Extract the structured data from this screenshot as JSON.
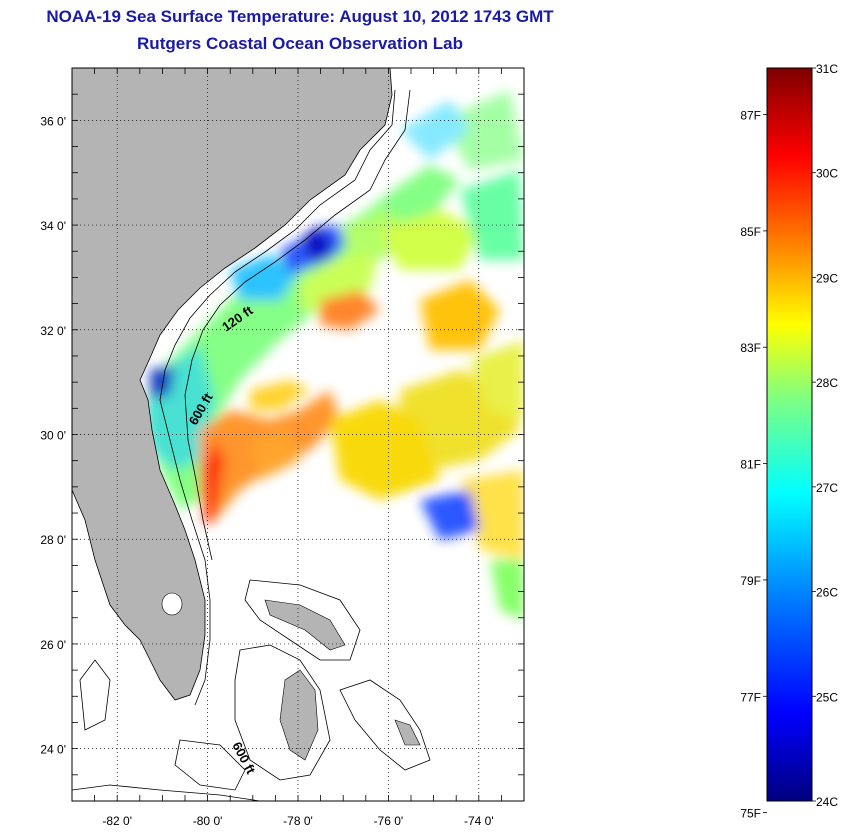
{
  "header": {
    "title": "NOAA-19 Sea Surface Temperature:  August 10, 2012 1743 GMT",
    "subtitle": "Rutgers Coastal Ocean Observation Lab"
  },
  "map": {
    "lat_ticks": [
      {
        "value": 36,
        "label": "36 0'"
      },
      {
        "value": 34,
        "label": "34 0'"
      },
      {
        "value": 32,
        "label": "32 0'"
      },
      {
        "value": 30,
        "label": "30 0'"
      },
      {
        "value": 28,
        "label": "28 0'"
      },
      {
        "value": 26,
        "label": "26 0'"
      },
      {
        "value": 24,
        "label": "24 0'"
      }
    ],
    "lon_ticks": [
      {
        "value": -82,
        "label": "-82 0'"
      },
      {
        "value": -80,
        "label": "-80 0'"
      },
      {
        "value": -78,
        "label": "-78 0'"
      },
      {
        "value": -76,
        "label": "-76 0'"
      },
      {
        "value": -74,
        "label": "-74 0'"
      }
    ],
    "contour_labels": [
      "120 ft",
      "600 ft",
      "600 ft"
    ],
    "land_color": "#b4b4b4",
    "grid": "dotted"
  },
  "colorbar": {
    "celsius": [
      {
        "value": 31,
        "label": "31C"
      },
      {
        "value": 30,
        "label": "30C"
      },
      {
        "value": 29,
        "label": "29C"
      },
      {
        "value": 28,
        "label": "28C"
      },
      {
        "value": 27,
        "label": "27C"
      },
      {
        "value": 26,
        "label": "26C"
      },
      {
        "value": 25,
        "label": "25C"
      },
      {
        "value": 24,
        "label": "24C"
      }
    ],
    "fahrenheit": [
      {
        "value": 87,
        "label": "87F"
      },
      {
        "value": 85,
        "label": "85F"
      },
      {
        "value": 83,
        "label": "83F"
      },
      {
        "value": 81,
        "label": "81F"
      },
      {
        "value": 79,
        "label": "79F"
      },
      {
        "value": 77,
        "label": "77F"
      },
      {
        "value": 75,
        "label": "75F"
      }
    ],
    "colors": [
      "#00007f",
      "#0000ff",
      "#0080ff",
      "#00ffff",
      "#80ff80",
      "#ffff00",
      "#ff8000",
      "#ff0000",
      "#7f0000"
    ]
  }
}
